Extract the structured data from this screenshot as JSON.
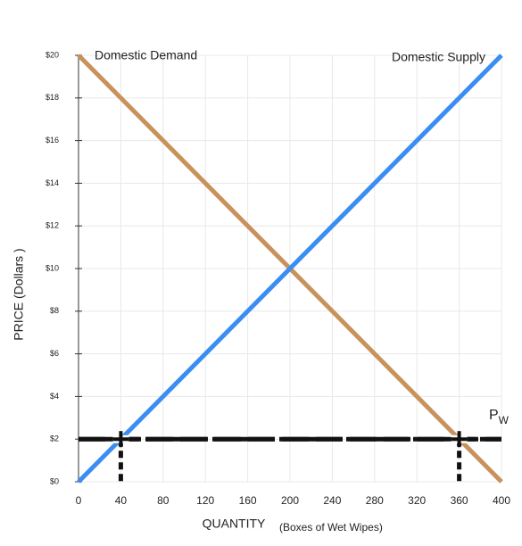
{
  "chart_data": {
    "type": "line",
    "x": [
      0,
      400
    ],
    "series": [
      {
        "name": "Domestic Demand",
        "color": "#c8925c",
        "values": [
          20,
          0
        ]
      },
      {
        "name": "Domestic Supply",
        "color": "#3a8ef2",
        "values": [
          0,
          20
        ]
      }
    ],
    "xlim": [
      0,
      400
    ],
    "ylim": [
      0,
      20
    ],
    "xticks": [
      0,
      40,
      80,
      120,
      160,
      200,
      240,
      280,
      320,
      360,
      400
    ],
    "yticks": [
      {
        "value": 0,
        "label": "$0"
      },
      {
        "value": 2,
        "label": "$2"
      },
      {
        "value": 4,
        "label": "$4"
      },
      {
        "value": 6,
        "label": "$6"
      },
      {
        "value": 8,
        "label": "$8"
      },
      {
        "value": 10,
        "label": "$10"
      },
      {
        "value": 12,
        "label": "$12"
      },
      {
        "value": 14,
        "label": "$14"
      },
      {
        "value": 16,
        "label": "$16"
      },
      {
        "value": 18,
        "label": "$18"
      },
      {
        "value": 20,
        "label": "$20"
      }
    ],
    "grid": true,
    "x_label": "QUANTITY",
    "x_label_note": "(Boxes of Wet Wipes)",
    "y_label": "PRICE (Dollars )",
    "world_price": {
      "label": "P",
      "subscript": "W",
      "value": 2,
      "quantities": [
        40,
        360
      ],
      "color": "#111111"
    }
  }
}
